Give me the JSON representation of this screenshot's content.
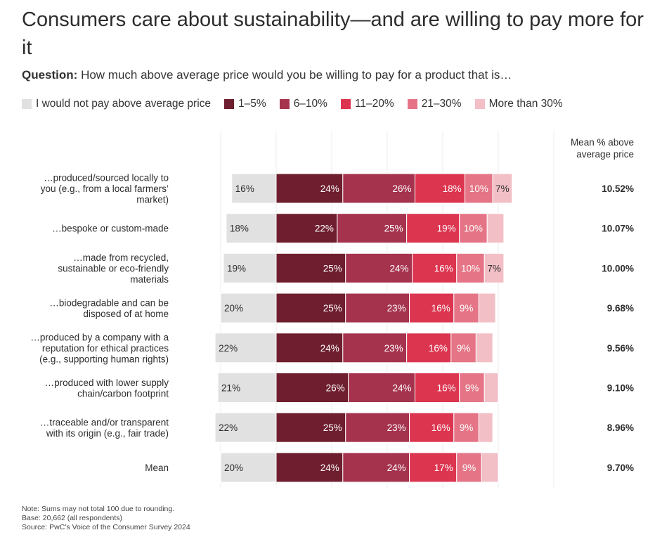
{
  "title": "Consumers care about sustainability—and are willing to pay more for it",
  "question": {
    "prefix": "Question:",
    "text": "How much above average price would you be willing to pay for a product that is…"
  },
  "legend": [
    {
      "label": "I would not pay above average price",
      "color": "#e1e1e1"
    },
    {
      "label": "1–5%",
      "color": "#6e1e2e"
    },
    {
      "label": "6–10%",
      "color": "#a5334e"
    },
    {
      "label": "11–20%",
      "color": "#dc3550"
    },
    {
      "label": "21–30%",
      "color": "#e57586"
    },
    {
      "label": "More than 30%",
      "color": "#f3bfc7"
    }
  ],
  "mean_header": [
    "Mean % above",
    "average price"
  ],
  "notes": [
    "Note: Sums may not total 100 due to rounding.",
    "Base: 20,662 (all respondents)",
    "Source: PwC’s Voice of the Consumer Survey 2024"
  ],
  "chart_data": {
    "type": "bar",
    "orientation": "horizontal-diverging-stacked",
    "categories": [
      [
        "…produced/sourced locally to",
        "you (e.g., from a local farmers’",
        "market)"
      ],
      [
        "…bespoke or custom-made"
      ],
      [
        "…made from recycled,",
        "sustainable or eco-friendly",
        "materials"
      ],
      [
        "…biodegradable and can be",
        "disposed of at home"
      ],
      [
        "…produced by a company with a",
        "reputation for ethical practices",
        "(e.g., supporting human rights)"
      ],
      [
        "…produced with lower supply",
        "chain/carbon footprint"
      ],
      [
        "…traceable and/or transparent",
        "with its origin (e.g., fair trade)"
      ],
      [
        "Mean"
      ]
    ],
    "series": [
      {
        "name": "I would not pay above average price",
        "values": [
          16,
          18,
          19,
          20,
          22,
          21,
          22,
          20
        ]
      },
      {
        "name": "1–5%",
        "values": [
          24,
          22,
          25,
          25,
          24,
          26,
          25,
          24
        ]
      },
      {
        "name": "6–10%",
        "values": [
          26,
          25,
          24,
          23,
          23,
          24,
          23,
          24
        ]
      },
      {
        "name": "11–20%",
        "values": [
          18,
          19,
          16,
          16,
          16,
          16,
          16,
          17
        ]
      },
      {
        "name": "21–30%",
        "values": [
          10,
          10,
          10,
          9,
          9,
          9,
          9,
          9
        ]
      },
      {
        "name": "More than 30%",
        "values": [
          7,
          6,
          7,
          6,
          6,
          5,
          5,
          6
        ]
      }
    ],
    "labels": [
      [
        "16%",
        "24%",
        "26%",
        "18%",
        "10%",
        "7%"
      ],
      [
        "18%",
        "22%",
        "25%",
        "19%",
        "10%",
        ""
      ],
      [
        "19%",
        "25%",
        "24%",
        "16%",
        "10%",
        "7%"
      ],
      [
        "20%",
        "25%",
        "23%",
        "16%",
        "9%",
        ""
      ],
      [
        "22%",
        "24%",
        "23%",
        "16%",
        "9%",
        ""
      ],
      [
        "21%",
        "26%",
        "24%",
        "16%",
        "9%",
        ""
      ],
      [
        "22%",
        "25%",
        "23%",
        "16%",
        "9%",
        ""
      ],
      [
        "20%",
        "24%",
        "24%",
        "17%",
        "9%",
        ""
      ]
    ],
    "mean_values": [
      "10.52%",
      "10.07%",
      "10.00%",
      "9.68%",
      "9.56%",
      "9.10%",
      "8.96%",
      "9.70%"
    ],
    "grid": true,
    "legend_position": "top"
  }
}
